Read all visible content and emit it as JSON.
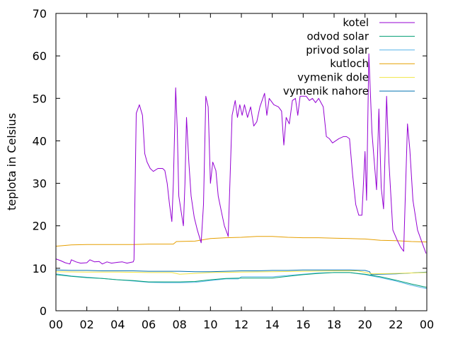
{
  "chart_data": {
    "type": "line",
    "title": "",
    "xlabel": "",
    "ylabel": "teplota in Celsius",
    "xlim": [
      0,
      24
    ],
    "ylim": [
      0,
      70
    ],
    "x_ticks": [
      "00",
      "02",
      "04",
      "06",
      "08",
      "10",
      "12",
      "14",
      "16",
      "18",
      "20",
      "22",
      "00"
    ],
    "y_ticks": [
      "0",
      "10",
      "20",
      "30",
      "40",
      "50",
      "60",
      "70"
    ],
    "grid": false,
    "legend_position": "top-right",
    "series": [
      {
        "name": "kotel",
        "color": "#9400d3",
        "points": [
          [
            0.0,
            12.2
          ],
          [
            0.3,
            11.8
          ],
          [
            0.6,
            11.3
          ],
          [
            0.9,
            11.0
          ],
          [
            1.0,
            12.0
          ],
          [
            1.3,
            11.5
          ],
          [
            1.6,
            11.2
          ],
          [
            2.0,
            11.3
          ],
          [
            2.2,
            12.0
          ],
          [
            2.5,
            11.5
          ],
          [
            2.8,
            11.6
          ],
          [
            3.0,
            11.0
          ],
          [
            3.3,
            11.5
          ],
          [
            3.6,
            11.2
          ],
          [
            4.0,
            11.4
          ],
          [
            4.3,
            11.5
          ],
          [
            4.6,
            11.2
          ],
          [
            5.0,
            11.5
          ],
          [
            5.05,
            12.0
          ],
          [
            5.2,
            46.5
          ],
          [
            5.4,
            48.5
          ],
          [
            5.6,
            46.0
          ],
          [
            5.75,
            37.0
          ],
          [
            5.9,
            35.0
          ],
          [
            6.1,
            33.5
          ],
          [
            6.3,
            32.8
          ],
          [
            6.6,
            33.5
          ],
          [
            6.9,
            33.5
          ],
          [
            7.05,
            33.0
          ],
          [
            7.2,
            30.0
          ],
          [
            7.35,
            25.0
          ],
          [
            7.5,
            21.0
          ],
          [
            7.6,
            30.0
          ],
          [
            7.75,
            52.5
          ],
          [
            7.85,
            43.0
          ],
          [
            7.95,
            27.0
          ],
          [
            8.1,
            23.5
          ],
          [
            8.25,
            20.0
          ],
          [
            8.35,
            30.0
          ],
          [
            8.45,
            45.5
          ],
          [
            8.6,
            35.0
          ],
          [
            8.75,
            27.0
          ],
          [
            8.95,
            22.0
          ],
          [
            9.15,
            19.0
          ],
          [
            9.4,
            16.0
          ],
          [
            9.55,
            25.0
          ],
          [
            9.7,
            50.5
          ],
          [
            9.85,
            48.0
          ],
          [
            10.0,
            30.0
          ],
          [
            10.15,
            35.0
          ],
          [
            10.35,
            33.0
          ],
          [
            10.5,
            27.0
          ],
          [
            10.7,
            23.5
          ],
          [
            10.9,
            20.0
          ],
          [
            11.1,
            18.0
          ],
          [
            11.15,
            17.5
          ],
          [
            11.4,
            46.0
          ],
          [
            11.6,
            49.5
          ],
          [
            11.75,
            45.5
          ],
          [
            11.9,
            48.5
          ],
          [
            12.05,
            46.0
          ],
          [
            12.2,
            48.5
          ],
          [
            12.4,
            45.5
          ],
          [
            12.6,
            48.0
          ],
          [
            12.8,
            43.5
          ],
          [
            13.0,
            44.5
          ],
          [
            13.2,
            48.0
          ],
          [
            13.5,
            51.2
          ],
          [
            13.65,
            46.0
          ],
          [
            13.8,
            50.0
          ],
          [
            14.1,
            48.5
          ],
          [
            14.4,
            48.0
          ],
          [
            14.6,
            47.0
          ],
          [
            14.75,
            39.0
          ],
          [
            14.9,
            45.5
          ],
          [
            15.1,
            44.0
          ],
          [
            15.3,
            49.5
          ],
          [
            15.5,
            50.0
          ],
          [
            15.65,
            46.0
          ],
          [
            15.8,
            50.5
          ],
          [
            16.2,
            50.5
          ],
          [
            16.4,
            49.5
          ],
          [
            16.6,
            50.0
          ],
          [
            16.8,
            49.0
          ],
          [
            17.0,
            50.0
          ],
          [
            17.3,
            48.0
          ],
          [
            17.5,
            41.0
          ],
          [
            17.7,
            40.5
          ],
          [
            17.9,
            39.5
          ],
          [
            18.1,
            40.0
          ],
          [
            18.3,
            40.5
          ],
          [
            18.6,
            41.0
          ],
          [
            18.8,
            41.0
          ],
          [
            19.0,
            40.5
          ],
          [
            19.2,
            32.0
          ],
          [
            19.4,
            25.0
          ],
          [
            19.6,
            22.5
          ],
          [
            19.8,
            22.5
          ],
          [
            20.0,
            37.5
          ],
          [
            20.1,
            26.0
          ],
          [
            20.25,
            60.5
          ],
          [
            20.45,
            42.0
          ],
          [
            20.6,
            35.0
          ],
          [
            20.75,
            28.5
          ],
          [
            20.9,
            47.5
          ],
          [
            21.05,
            29.0
          ],
          [
            21.2,
            24.0
          ],
          [
            21.4,
            50.5
          ],
          [
            21.55,
            35.0
          ],
          [
            21.8,
            19.0
          ],
          [
            22.1,
            16.5
          ],
          [
            22.3,
            15.0
          ],
          [
            22.5,
            14.0
          ],
          [
            22.75,
            44.0
          ],
          [
            22.9,
            38.0
          ],
          [
            23.1,
            26.0
          ],
          [
            23.4,
            19.0
          ],
          [
            23.7,
            16.0
          ],
          [
            23.95,
            13.5
          ]
        ]
      },
      {
        "name": "odvod solar",
        "color": "#009e73",
        "points": [
          [
            0.0,
            8.5
          ],
          [
            1.0,
            8.1
          ],
          [
            2.0,
            7.8
          ],
          [
            3.0,
            7.6
          ],
          [
            4.0,
            7.3
          ],
          [
            5.0,
            7.1
          ],
          [
            6.0,
            6.8
          ],
          [
            7.0,
            6.8
          ],
          [
            8.0,
            6.8
          ],
          [
            9.0,
            6.9
          ],
          [
            10.0,
            7.3
          ],
          [
            11.0,
            7.6
          ],
          [
            12.0,
            7.7
          ],
          [
            13.0,
            7.7
          ],
          [
            14.0,
            7.7
          ],
          [
            15.0,
            8.1
          ],
          [
            16.0,
            8.5
          ],
          [
            17.0,
            8.8
          ],
          [
            18.0,
            9.0
          ],
          [
            19.0,
            9.0
          ],
          [
            20.0,
            8.6
          ],
          [
            21.0,
            8.0
          ],
          [
            22.0,
            7.2
          ],
          [
            23.0,
            6.3
          ],
          [
            24.0,
            5.5
          ]
        ]
      },
      {
        "name": "privod solar",
        "color": "#56b4e9",
        "points": [
          [
            0.0,
            8.7
          ],
          [
            1.0,
            8.2
          ],
          [
            2.0,
            7.9
          ],
          [
            3.0,
            7.6
          ],
          [
            4.0,
            7.3
          ],
          [
            5.0,
            7.0
          ],
          [
            6.0,
            6.7
          ],
          [
            7.0,
            6.6
          ],
          [
            8.0,
            6.6
          ],
          [
            9.0,
            6.7
          ],
          [
            10.0,
            7.1
          ],
          [
            11.0,
            7.5
          ],
          [
            11.8,
            7.5
          ],
          [
            12.0,
            8.0
          ],
          [
            13.0,
            8.0
          ],
          [
            14.0,
            8.0
          ],
          [
            15.0,
            8.3
          ],
          [
            16.0,
            8.6
          ],
          [
            17.0,
            8.9
          ],
          [
            18.0,
            9.0
          ],
          [
            19.0,
            9.0
          ],
          [
            20.0,
            8.5
          ],
          [
            21.0,
            7.8
          ],
          [
            22.0,
            7.0
          ],
          [
            23.0,
            6.0
          ],
          [
            24.0,
            5.2
          ]
        ]
      },
      {
        "name": "kutloch",
        "color": "#e69f00",
        "points": [
          [
            0.0,
            15.2
          ],
          [
            1.0,
            15.5
          ],
          [
            2.0,
            15.6
          ],
          [
            3.0,
            15.6
          ],
          [
            4.0,
            15.6
          ],
          [
            5.0,
            15.6
          ],
          [
            6.0,
            15.7
          ],
          [
            7.0,
            15.7
          ],
          [
            7.6,
            15.7
          ],
          [
            7.8,
            16.3
          ],
          [
            9.0,
            16.4
          ],
          [
            10.0,
            17.0
          ],
          [
            11.0,
            17.2
          ],
          [
            12.0,
            17.3
          ],
          [
            13.0,
            17.5
          ],
          [
            14.0,
            17.5
          ],
          [
            15.0,
            17.3
          ],
          [
            16.0,
            17.2
          ],
          [
            17.0,
            17.2
          ],
          [
            18.0,
            17.1
          ],
          [
            19.0,
            17.0
          ],
          [
            20.0,
            16.9
          ],
          [
            21.0,
            16.6
          ],
          [
            22.0,
            16.5
          ],
          [
            23.0,
            16.3
          ],
          [
            24.0,
            16.2
          ]
        ]
      },
      {
        "name": "vymenik dole",
        "color": "#f0e442",
        "points": [
          [
            0.0,
            9.2
          ],
          [
            2.0,
            9.1
          ],
          [
            4.0,
            9.1
          ],
          [
            6.0,
            9.0
          ],
          [
            7.5,
            9.0
          ],
          [
            8.0,
            8.6
          ],
          [
            9.0,
            8.8
          ],
          [
            10.0,
            9.0
          ],
          [
            12.0,
            9.1
          ],
          [
            14.0,
            9.2
          ],
          [
            16.0,
            9.3
          ],
          [
            18.0,
            9.4
          ],
          [
            19.5,
            9.4
          ],
          [
            20.5,
            8.7
          ],
          [
            22.0,
            8.8
          ],
          [
            24.0,
            9.0
          ]
        ]
      },
      {
        "name": "vymenik nahore",
        "color": "#0072b2",
        "points": [
          [
            0.0,
            9.6
          ],
          [
            1.0,
            9.5
          ],
          [
            2.0,
            9.5
          ],
          [
            3.0,
            9.4
          ],
          [
            4.0,
            9.4
          ],
          [
            5.0,
            9.4
          ],
          [
            6.0,
            9.3
          ],
          [
            7.0,
            9.3
          ],
          [
            8.0,
            9.3
          ],
          [
            9.0,
            9.2
          ],
          [
            10.0,
            9.2
          ],
          [
            11.0,
            9.3
          ],
          [
            12.0,
            9.4
          ],
          [
            13.0,
            9.4
          ],
          [
            14.0,
            9.5
          ],
          [
            15.0,
            9.5
          ],
          [
            16.0,
            9.6
          ],
          [
            17.0,
            9.6
          ],
          [
            18.0,
            9.6
          ],
          [
            19.0,
            9.6
          ],
          [
            20.0,
            9.5
          ],
          [
            20.3,
            9.2
          ],
          [
            20.4,
            8.5
          ],
          [
            21.0,
            8.6
          ],
          [
            22.0,
            8.7
          ],
          [
            23.0,
            8.9
          ],
          [
            24.0,
            9.1
          ]
        ]
      }
    ]
  }
}
